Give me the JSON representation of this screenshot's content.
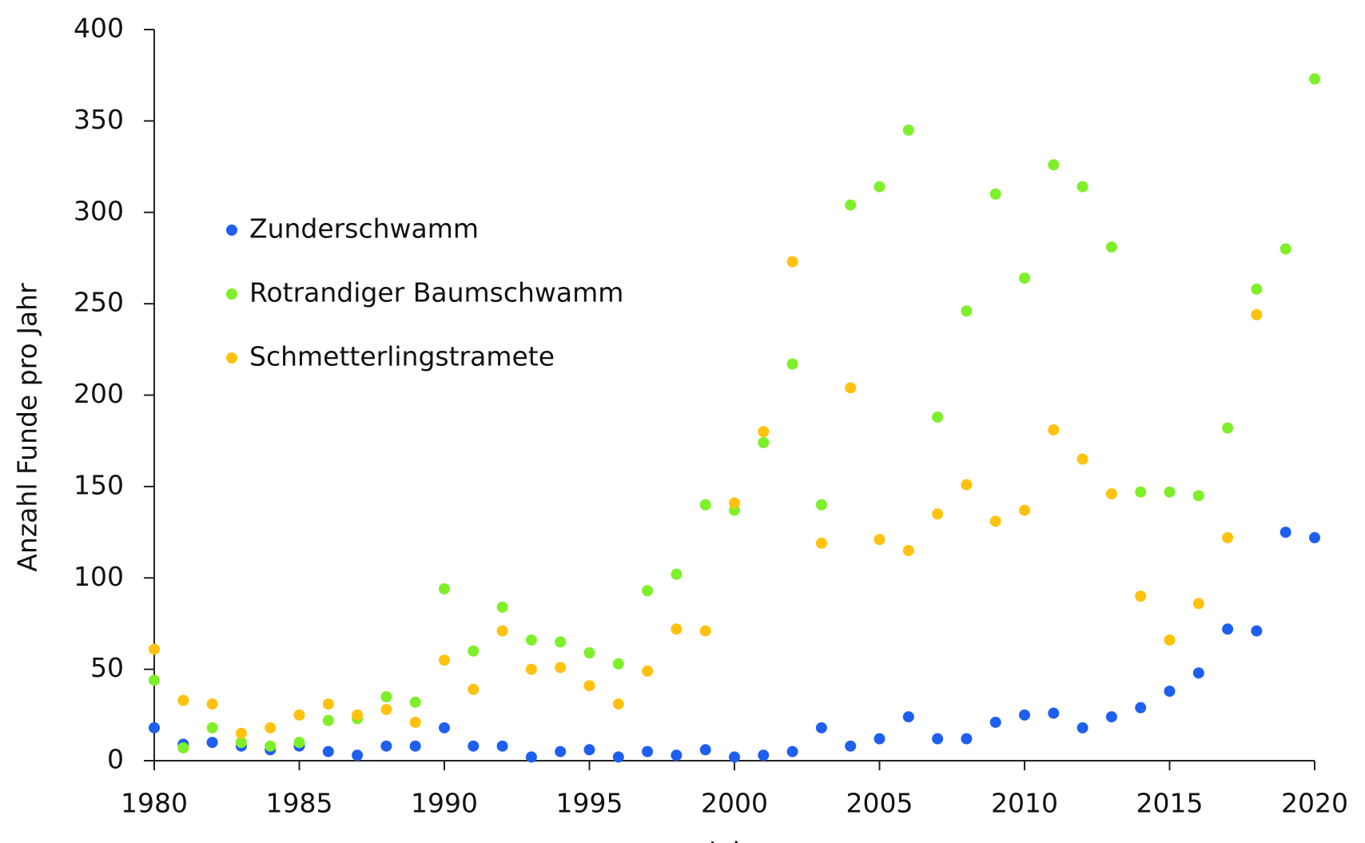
{
  "chart_data": {
    "type": "scatter",
    "xlabel": "Jahr",
    "ylabel": "Anzahl Funde pro Jahr",
    "x": [
      1980,
      1981,
      1982,
      1983,
      1984,
      1985,
      1986,
      1987,
      1988,
      1989,
      1990,
      1991,
      1992,
      1993,
      1994,
      1995,
      1996,
      1997,
      1998,
      1999,
      2000,
      2001,
      2002,
      2003,
      2004,
      2005,
      2006,
      2007,
      2008,
      2009,
      2010,
      2011,
      2012,
      2013,
      2014,
      2015,
      2016,
      2017,
      2018,
      2019,
      2020
    ],
    "series": [
      {
        "name": "Zunderschwamm",
        "color": "#1f5ff0",
        "values": [
          18,
          9,
          10,
          8,
          6,
          8,
          5,
          3,
          8,
          8,
          18,
          8,
          8,
          2,
          5,
          6,
          2,
          5,
          3,
          6,
          2,
          3,
          5,
          18,
          8,
          12,
          24,
          12,
          12,
          21,
          25,
          26,
          18,
          24,
          29,
          38,
          48,
          72,
          71,
          125,
          122
        ]
      },
      {
        "name": "Rotrandiger Baumschwamm",
        "color": "#7ef02a",
        "values": [
          44,
          7,
          18,
          10,
          8,
          10,
          22,
          23,
          35,
          32,
          94,
          60,
          84,
          66,
          65,
          59,
          53,
          93,
          102,
          140,
          137,
          174,
          217,
          140,
          304,
          314,
          345,
          188,
          246,
          310,
          264,
          326,
          314,
          281,
          147,
          147,
          145,
          182,
          258,
          280,
          373
        ]
      },
      {
        "name": "Schmetterlingstramete",
        "color": "#ffc20e",
        "values": [
          61,
          33,
          31,
          15,
          18,
          25,
          31,
          25,
          28,
          21,
          55,
          39,
          71,
          50,
          51,
          41,
          31,
          49,
          72,
          71,
          141,
          180,
          273,
          119,
          204,
          121,
          115,
          135,
          151,
          131,
          137,
          181,
          165,
          146,
          90,
          66,
          86,
          122,
          244,
          null,
          null
        ]
      }
    ],
    "xlim": [
      1980,
      2020
    ],
    "xticks": [
      1980,
      1985,
      1990,
      1995,
      2000,
      2005,
      2010,
      2015,
      2020
    ],
    "ylim": [
      0,
      400
    ],
    "yticks": [
      0,
      50,
      100,
      150,
      200,
      250,
      300,
      350,
      400
    ],
    "legend": "upper left",
    "grid": false
  }
}
